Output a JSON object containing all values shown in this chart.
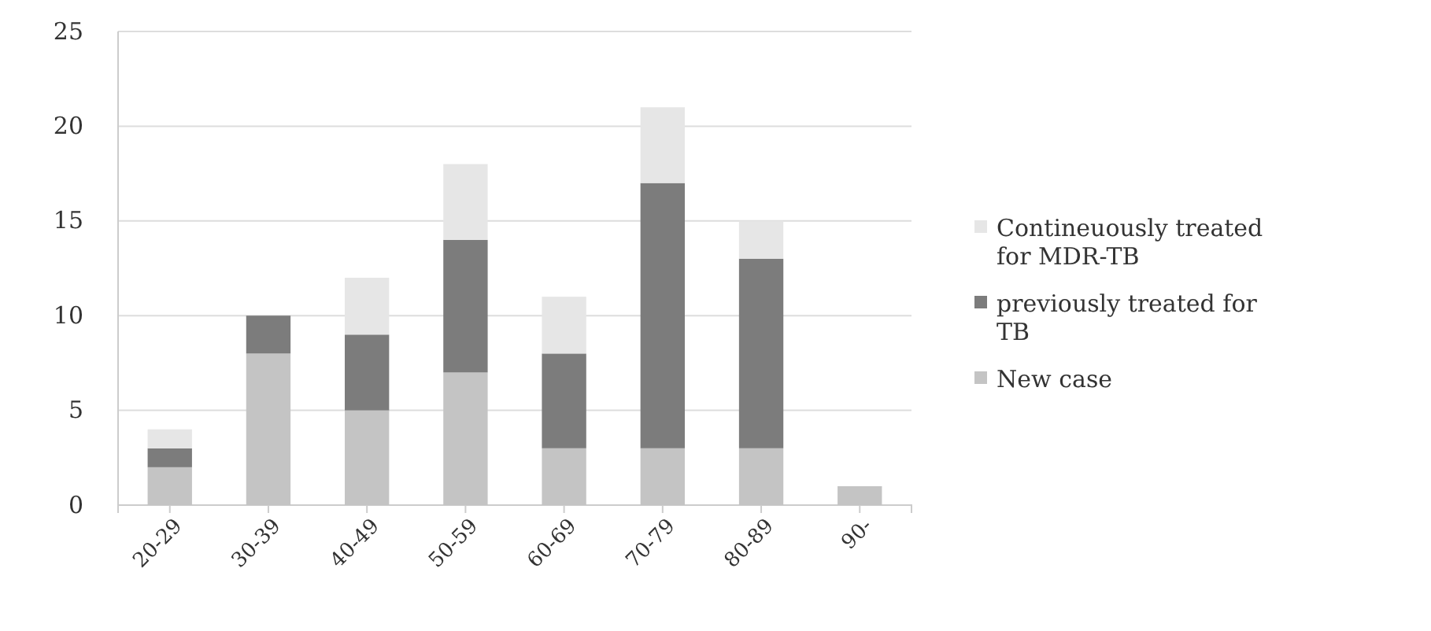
{
  "chart_data": {
    "type": "bar",
    "stacked": true,
    "categories": [
      "20-29",
      "30-39",
      "40-49",
      "50-59",
      "60-69",
      "70-79",
      "80-89",
      "90-"
    ],
    "series": [
      {
        "name": "New case",
        "color": "#c4c4c4",
        "values": [
          2,
          8,
          5,
          7,
          3,
          3,
          3,
          1
        ]
      },
      {
        "name": "previously treated for TB",
        "color": "#7c7c7c",
        "values": [
          1,
          2,
          4,
          7,
          5,
          14,
          10,
          0
        ]
      },
      {
        "name": "Contineuously treated for MDR-TB",
        "color": "#e6e6e6",
        "values": [
          1,
          0,
          3,
          4,
          3,
          4,
          2,
          0
        ]
      }
    ],
    "ylim": [
      0,
      25
    ],
    "yticks": [
      0,
      5,
      10,
      15,
      20,
      25
    ],
    "grid": "y",
    "legend": "right"
  }
}
